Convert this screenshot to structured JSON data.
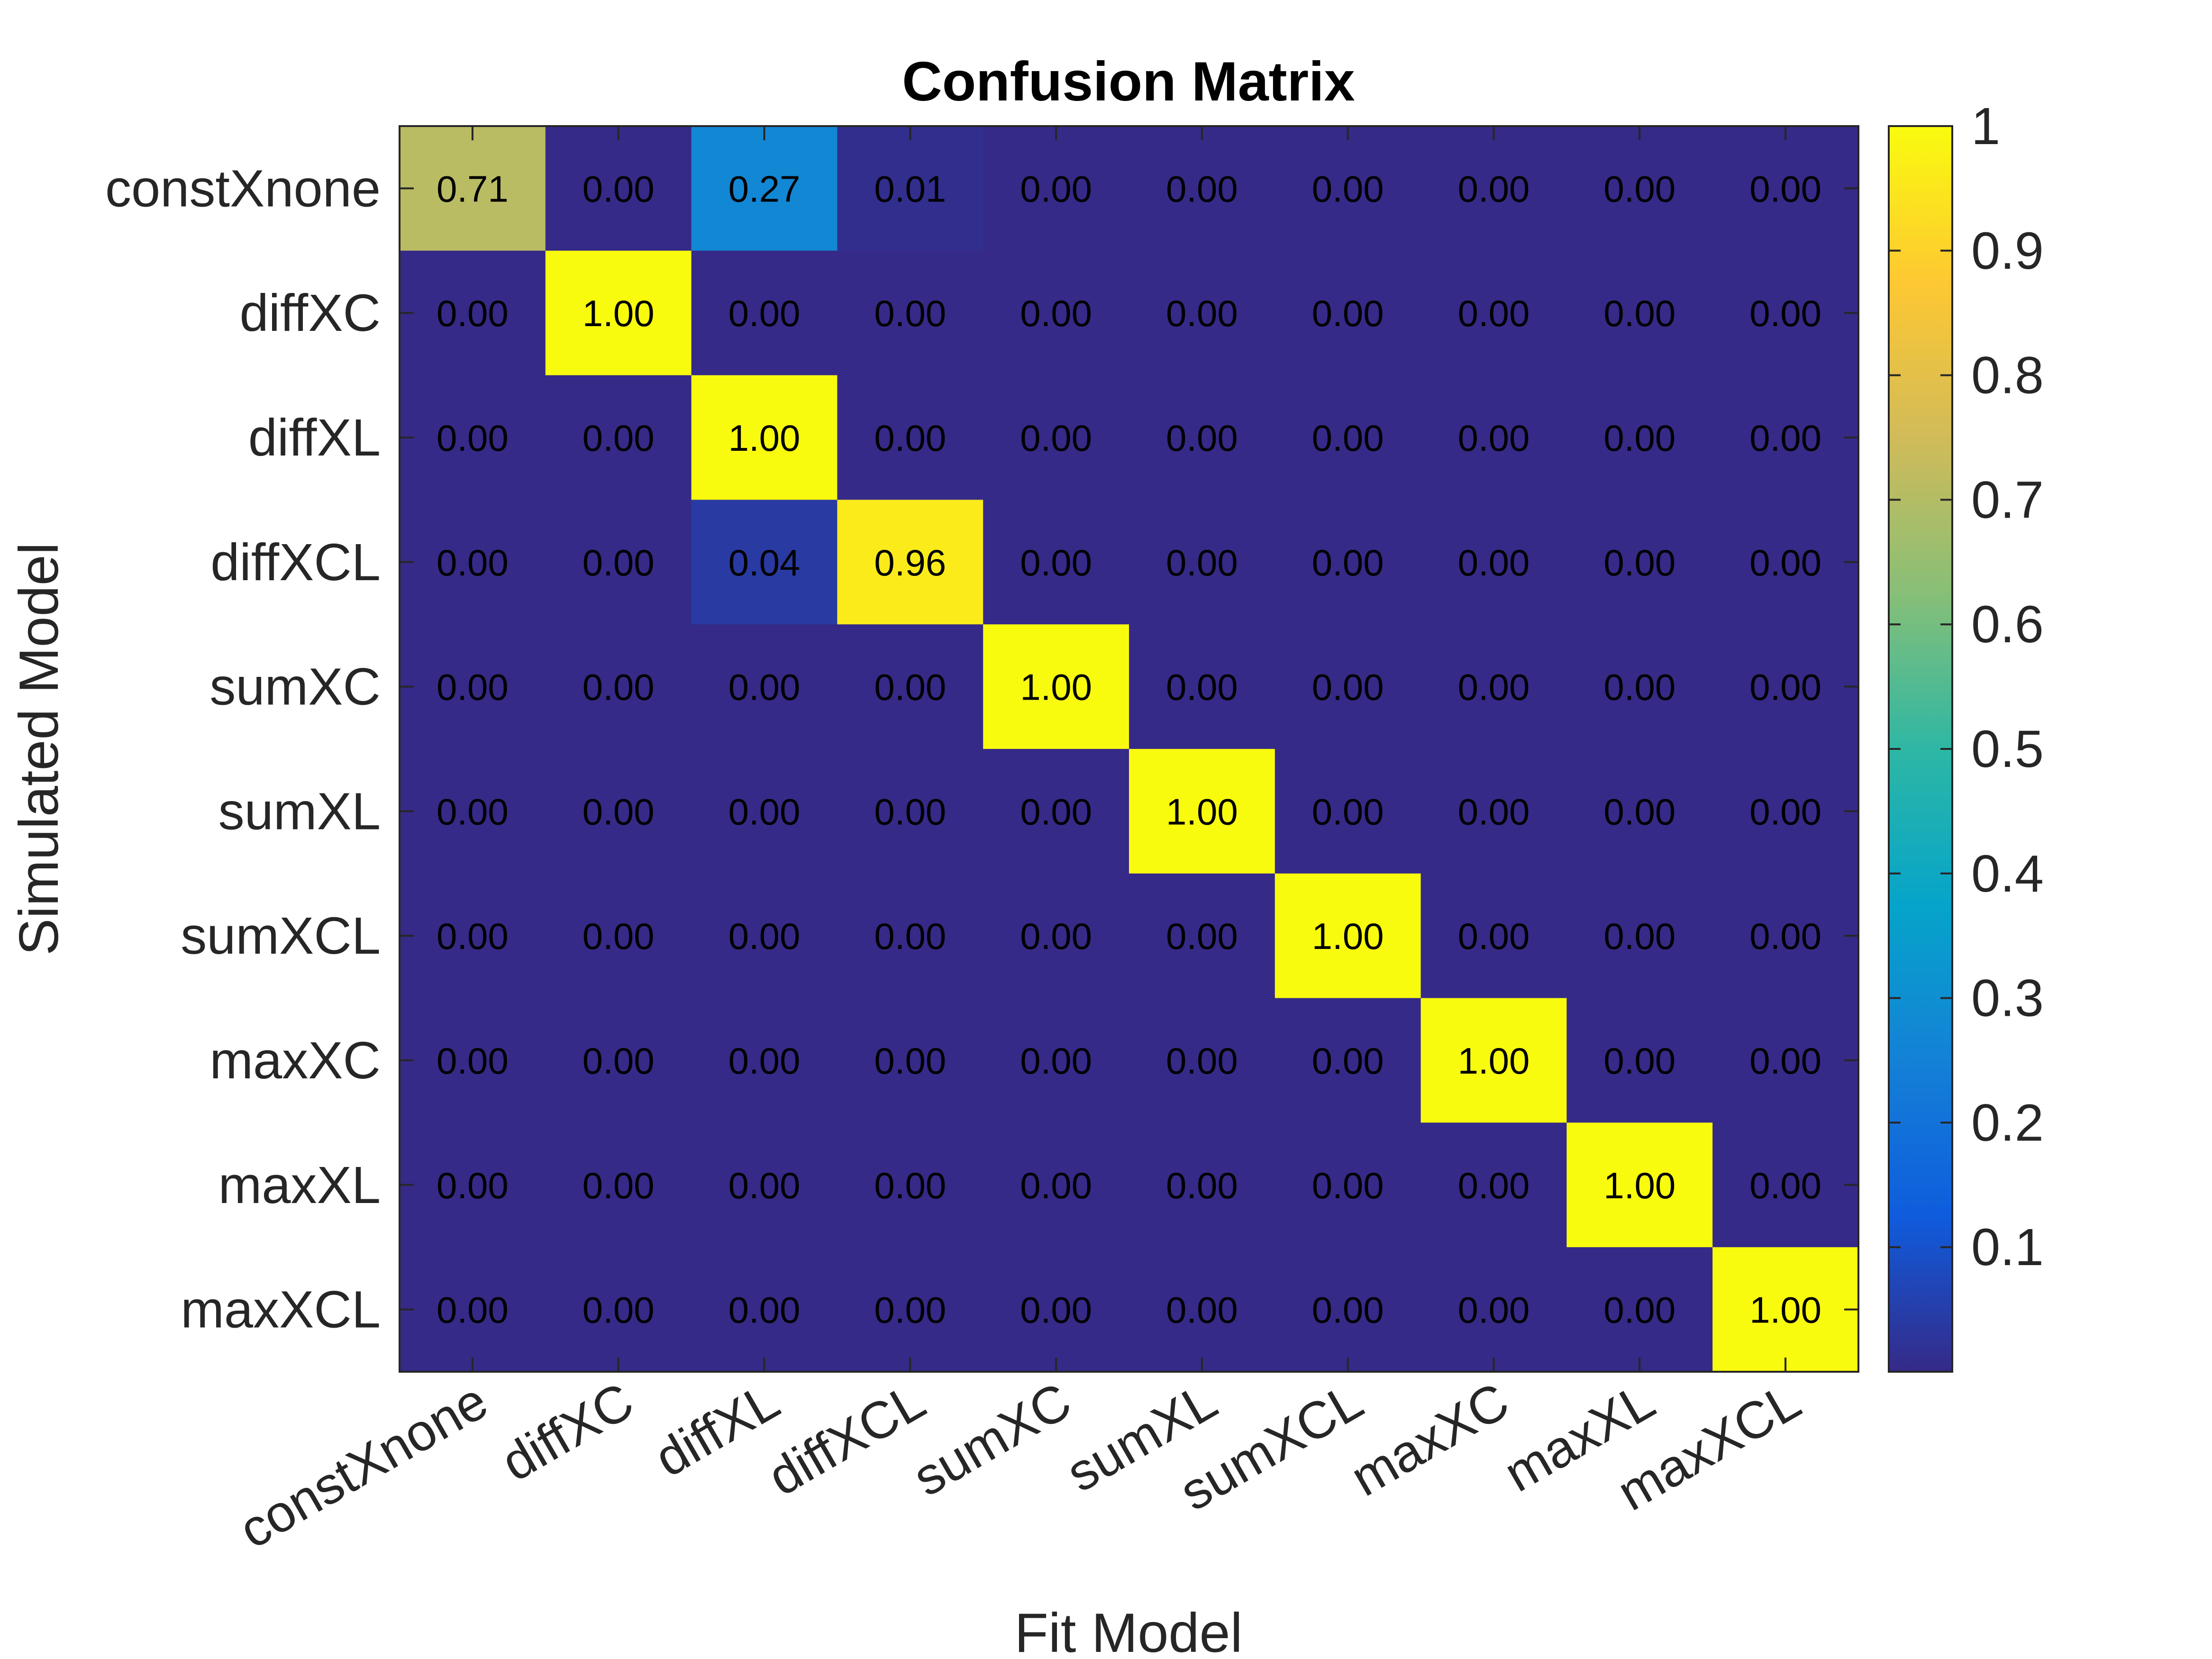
{
  "chart_data": {
    "type": "heatmap",
    "title": "Confusion Matrix",
    "xlabel": "Fit Model",
    "ylabel": "Simulated Model",
    "x_categories": [
      "constXnone",
      "diffXC",
      "diffXL",
      "diffXCL",
      "sumXC",
      "sumXL",
      "sumXCL",
      "maxXC",
      "maxXL",
      "maxXCL"
    ],
    "y_categories": [
      "constXnone",
      "diffXC",
      "diffXL",
      "diffXCL",
      "sumXC",
      "sumXL",
      "sumXCL",
      "maxXC",
      "maxXL",
      "maxXCL"
    ],
    "values": [
      [
        0.71,
        0.0,
        0.27,
        0.01,
        0.0,
        0.0,
        0.0,
        0.0,
        0.0,
        0.0
      ],
      [
        0.0,
        1.0,
        0.0,
        0.0,
        0.0,
        0.0,
        0.0,
        0.0,
        0.0,
        0.0
      ],
      [
        0.0,
        0.0,
        1.0,
        0.0,
        0.0,
        0.0,
        0.0,
        0.0,
        0.0,
        0.0
      ],
      [
        0.0,
        0.0,
        0.04,
        0.96,
        0.0,
        0.0,
        0.0,
        0.0,
        0.0,
        0.0
      ],
      [
        0.0,
        0.0,
        0.0,
        0.0,
        1.0,
        0.0,
        0.0,
        0.0,
        0.0,
        0.0
      ],
      [
        0.0,
        0.0,
        0.0,
        0.0,
        0.0,
        1.0,
        0.0,
        0.0,
        0.0,
        0.0
      ],
      [
        0.0,
        0.0,
        0.0,
        0.0,
        0.0,
        0.0,
        1.0,
        0.0,
        0.0,
        0.0
      ],
      [
        0.0,
        0.0,
        0.0,
        0.0,
        0.0,
        0.0,
        0.0,
        1.0,
        0.0,
        0.0
      ],
      [
        0.0,
        0.0,
        0.0,
        0.0,
        0.0,
        0.0,
        0.0,
        0.0,
        1.0,
        0.0
      ],
      [
        0.0,
        0.0,
        0.0,
        0.0,
        0.0,
        0.0,
        0.0,
        0.0,
        0.0,
        1.0
      ]
    ],
    "value_format_decimals": 2,
    "colorbar": {
      "colormap": "parula",
      "range": [
        0,
        1
      ],
      "ticks": [
        0.1,
        0.2,
        0.3,
        0.4,
        0.5,
        0.6,
        0.7,
        0.8,
        0.9,
        1
      ],
      "tick_labels": [
        "0.1",
        "0.2",
        "0.3",
        "0.4",
        "0.5",
        "0.6",
        "0.7",
        "0.8",
        "0.9",
        "1"
      ]
    },
    "legend": "colorbar-right",
    "grid": false
  },
  "colors": {
    "parula_stops": [
      "#352a87",
      "#0f5cdd",
      "#1481d6",
      "#06a4ca",
      "#2eb7a4",
      "#87bf77",
      "#d1bb59",
      "#fec832",
      "#f9fb0e"
    ],
    "background": "#ffffff",
    "text": "#000000",
    "axis_text": "#262626"
  }
}
